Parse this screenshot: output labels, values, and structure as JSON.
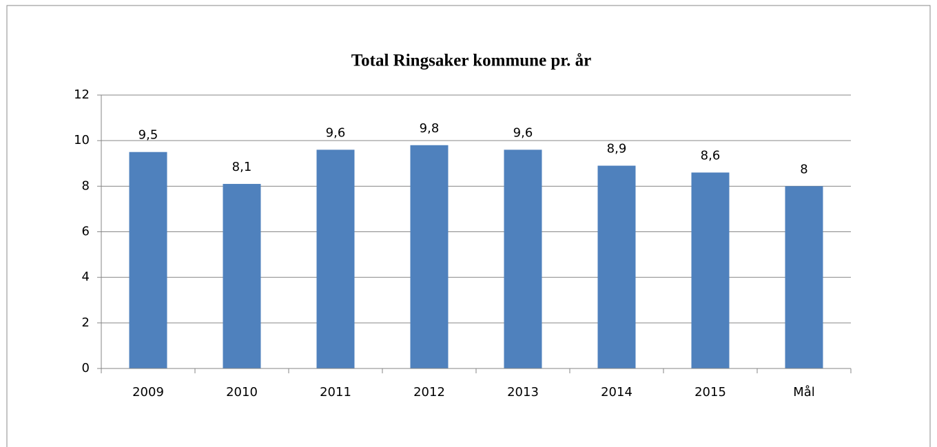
{
  "chart_data": {
    "type": "bar",
    "title": "Total Ringsaker kommune pr. år",
    "categories": [
      "2009",
      "2010",
      "2011",
      "2012",
      "2013",
      "2014",
      "2015",
      "Mål"
    ],
    "values": [
      9.5,
      8.1,
      9.6,
      9.8,
      9.6,
      8.9,
      8.6,
      8
    ],
    "value_labels": [
      "9,5",
      "8,1",
      "9,6",
      "9,8",
      "9,6",
      "8,9",
      "8,6",
      "8"
    ],
    "color": "#4f81bd",
    "ylim": [
      0,
      12
    ],
    "yticks": [
      0,
      2,
      4,
      6,
      8,
      10,
      12
    ],
    "grid": true
  }
}
